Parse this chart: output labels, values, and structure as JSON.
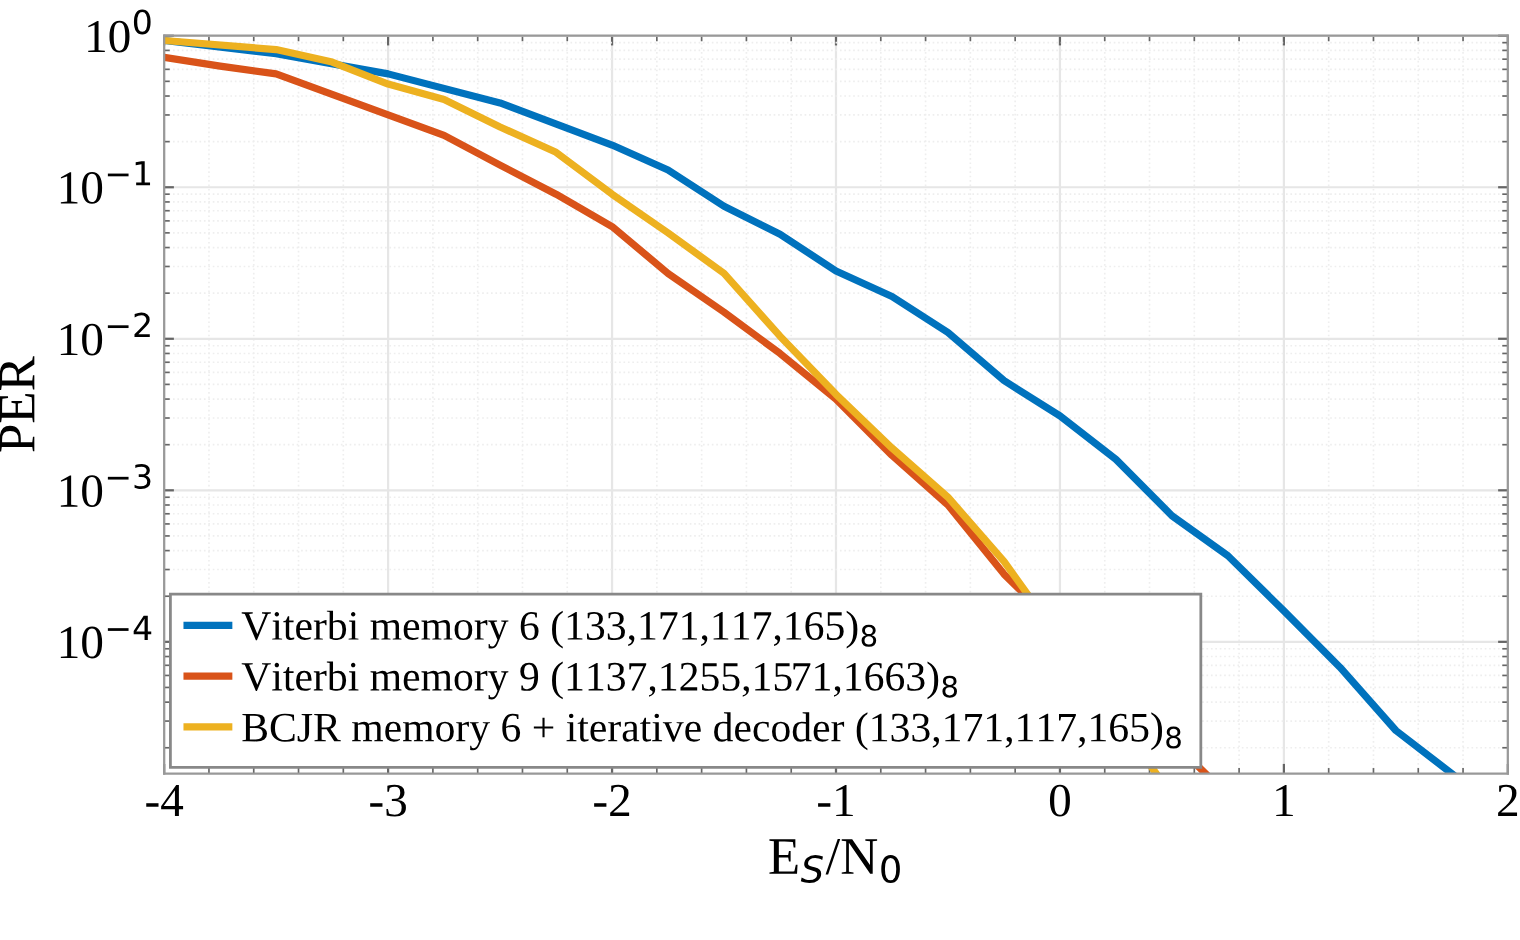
{
  "chart_data": {
    "type": "line",
    "xlabel": "E$_{S}$/N$_{0}$",
    "ylabel": "PER",
    "log": "y",
    "grid": true,
    "legend": "bottom left",
    "line_style": "solid",
    "marker": "none",
    "xlim": [
      -4,
      2
    ],
    "xticks": [
      -4,
      -3,
      -2,
      -1,
      0,
      1,
      2
    ],
    "ylim": [
      1.35e-05,
      1
    ],
    "yticks": [
      {
        "value": 0.0001,
        "label": "10$^{−4}$"
      },
      {
        "value": 0.001,
        "label": "10$^{−3}$"
      },
      {
        "value": 0.01,
        "label": "10$^{−2}$"
      },
      {
        "value": 0.1,
        "label": "10$^{−1}$"
      },
      {
        "value": 1,
        "label": "10$^{0}$"
      }
    ],
    "series": [
      {
        "name": "Viterbi memory 6 (133,171,117,165)$_{8}$",
        "color": "#0072bd",
        "x": [
          -4,
          -3.5,
          -3,
          -2.5,
          -2,
          -1.75,
          -1.5,
          -1.25,
          -1,
          -0.75,
          -0.5,
          -0.25,
          0,
          0.25,
          0.5,
          0.75,
          1,
          1.25,
          1.5,
          1.75
        ],
        "values": [
          0.93,
          0.76,
          0.56,
          0.36,
          0.19,
          0.13,
          0.075,
          0.049,
          0.028,
          0.019,
          0.011,
          0.0053,
          0.0031,
          0.0016,
          0.00068,
          0.00037,
          0.00016,
          6.8e-05,
          2.6e-05,
          1.35e-05
        ]
      },
      {
        "name": "Viterbi memory 9 (1137,1255,1571,1663)$_{8}$",
        "color": "#d95319",
        "x": [
          -4,
          -3.75,
          -3.5,
          -3.25,
          -3,
          -2.75,
          -2.5,
          -2.25,
          -2,
          -1.75,
          -1.5,
          -1.25,
          -1,
          -0.75,
          -0.5,
          -0.25,
          0.65
        ],
        "values": [
          0.72,
          0.63,
          0.56,
          0.41,
          0.3,
          0.22,
          0.14,
          0.09,
          0.055,
          0.027,
          0.015,
          0.008,
          0.004,
          0.0017,
          0.0008,
          0.00028,
          1.35e-05
        ]
      },
      {
        "name": "BCJR memory 6 + iterative decoder (133,171,117,165)$_{8}$",
        "color": "#edb120",
        "x": [
          -4,
          -3.5,
          -3.25,
          -3,
          -2.75,
          -2.5,
          -2.25,
          -2,
          -1.75,
          -1.5,
          -1.25,
          -1,
          -0.75,
          -0.5,
          -0.25,
          0.43
        ],
        "values": [
          0.93,
          0.81,
          0.67,
          0.48,
          0.38,
          0.25,
          0.17,
          0.09,
          0.05,
          0.027,
          0.0104,
          0.0043,
          0.0019,
          0.0009,
          0.00034,
          1.35e-05
        ]
      }
    ]
  }
}
